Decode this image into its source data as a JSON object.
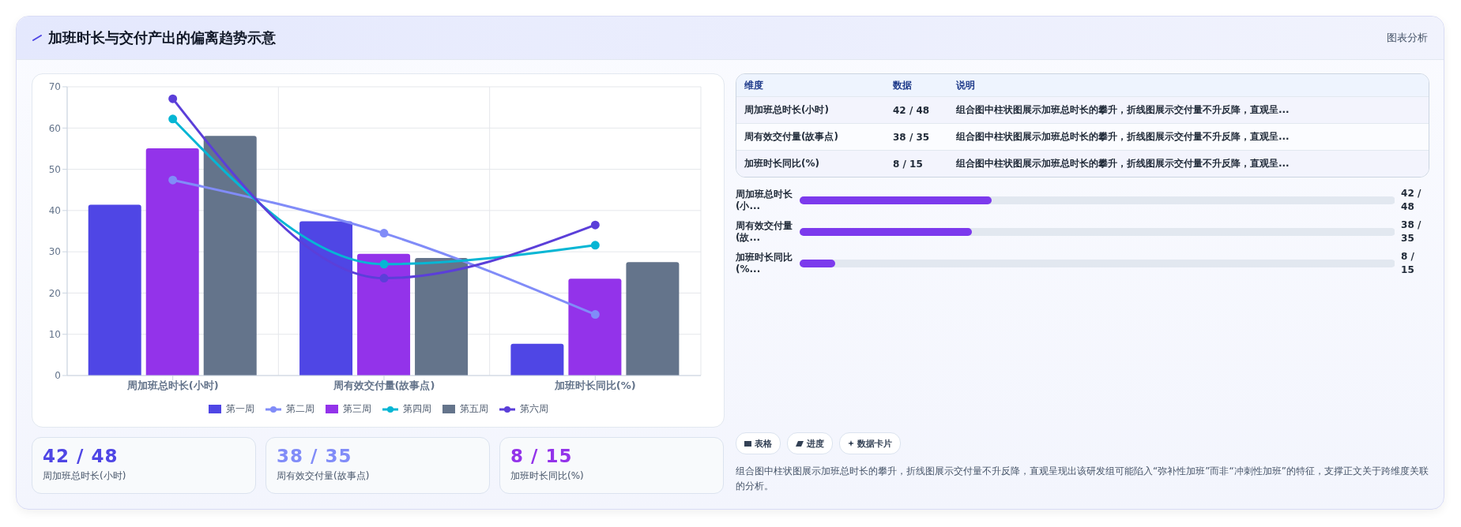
{
  "chart_data": [
    {
      "type": "bar",
      "title": "加班时长与交付产出的偏离趋势示意",
      "annotations": [
        "图表分析"
      ],
      "categories": [
        "周加班总时长(小时)",
        "周有效交付量(故事点)",
        "加班时长同比(%)"
      ],
      "series": [
        {
          "name": "第一周",
          "type": "bar",
          "color": "#4f46e5",
          "values": [
            41.4,
            37.4,
            7.7
          ]
        },
        {
          "name": "第二周",
          "type": "line",
          "color": "#818cf8",
          "values": [
            47.4,
            34.5,
            14.8
          ]
        },
        {
          "name": "第三周",
          "type": "bar",
          "color": "#9333ea",
          "values": [
            55.1,
            29.5,
            23.5
          ]
        },
        {
          "name": "第四周",
          "type": "line",
          "color": "#06b6d4",
          "values": [
            62.2,
            27,
            31.6
          ]
        },
        {
          "name": "第五周",
          "type": "bar",
          "color": "#64748b",
          "values": [
            58.1,
            28.5,
            27.5
          ]
        },
        {
          "name": "第六周",
          "type": "line",
          "color": "#5b3fd9",
          "values": [
            67.1,
            23.6,
            36.5
          ]
        }
      ],
      "ylim": [
        0,
        70
      ],
      "yticks": [
        0,
        10,
        20,
        30,
        40,
        50,
        60,
        70
      ],
      "grid": true,
      "legend": "bottom",
      "marker": "circle",
      "line_style": "solid"
    },
    {
      "type": "other",
      "annotations": [
        "维度",
        "数据",
        "说明",
        "周加班总时长(小时)",
        "42 / 48",
        "组合图中柱状图展示加班总时长的攀升，折线图展示交付量不升反降，直观呈...",
        "周有效交付量(故事点)",
        "38 / 35",
        "组合图中柱状图展示加班总时长的攀升，折线图展示交付量不升反降，直观呈...",
        "加班时长同比(%)",
        "8 / 15",
        "组合图中柱状图展示加班总时长的攀升，折线图展示交付量不升反降，直观呈..."
      ]
    },
    {
      "type": "other",
      "annotations": [
        "周加班总时长(小...",
        "42 / 48",
        "周有效交付量(故...",
        "38 / 35",
        "加班时长同比(%...",
        "8 / 15"
      ]
    },
    {
      "type": "other",
      "annotations": [
        "42 / 48",
        "周加班总时长(小时)",
        "38 / 35",
        "周有效交付量(故事点)",
        "8 / 15",
        "加班时长同比(%)"
      ],
      "colors": [
        "#4f46e5",
        "#818cf8",
        "#9333ea"
      ]
    },
    {
      "type": "other",
      "annotations": [
        "表格",
        "进度",
        "数据卡片",
        "组合图中柱状图展示加班总时长的攀升，折线图展示交付量不升反降，直观呈现出该研发组可能陷入“弥补性加班”而非“冲刺性加班”的特征，支撑正文关于跨维度关联的分析。"
      ]
    }
  ]
}
